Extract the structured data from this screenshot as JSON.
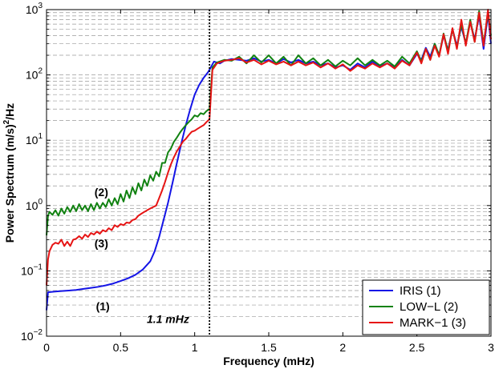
{
  "chart_data": {
    "type": "line",
    "title": "",
    "xlabel": "Frequency (mHz)",
    "ylabel": "Power Spectrum (m/s)",
    "ylabel_sup": "2",
    "ylabel_suffix": "/Hz",
    "xlim": [
      0,
      3
    ],
    "ylim": [
      0.01,
      1000
    ],
    "yscale": "log",
    "grid": "y-major-and-minor-dashed",
    "legend_position": "bottom-right",
    "x_ticks": [
      {
        "v": 0,
        "label": "0"
      },
      {
        "v": 0.5,
        "label": "0.5"
      },
      {
        "v": 1,
        "label": "1"
      },
      {
        "v": 1.5,
        "label": "1.5"
      },
      {
        "v": 2,
        "label": "2"
      },
      {
        "v": 2.5,
        "label": "2.5"
      },
      {
        "v": 3,
        "label": "3"
      }
    ],
    "y_ticks": [
      {
        "v": 0.01,
        "base": "10",
        "exp": "−2"
      },
      {
        "v": 0.1,
        "base": "10",
        "exp": "−1"
      },
      {
        "v": 1,
        "base": "10",
        "exp": "0"
      },
      {
        "v": 10,
        "base": "10",
        "exp": "1"
      },
      {
        "v": 100,
        "base": "10",
        "exp": "2"
      },
      {
        "v": 1000,
        "base": "10",
        "exp": "3"
      }
    ],
    "vline": {
      "x": 1.1
    },
    "annotations": [
      {
        "text": "(2)",
        "x": 0.37,
        "y": 1.4
      },
      {
        "text": "(3)",
        "x": 0.37,
        "y": 0.23
      },
      {
        "text": "(1)",
        "x": 0.38,
        "y": 0.025
      },
      {
        "text": "1.1 mHz",
        "x": 0.82,
        "y": 0.016,
        "italic": true
      }
    ],
    "series": [
      {
        "name": "IRIS (1)",
        "color": "#1414e6",
        "points": [
          [
            0,
            0.025
          ],
          [
            0.01,
            0.047
          ],
          [
            0.05,
            0.048
          ],
          [
            0.1,
            0.049
          ],
          [
            0.15,
            0.05
          ],
          [
            0.2,
            0.051
          ],
          [
            0.25,
            0.053
          ],
          [
            0.3,
            0.055
          ],
          [
            0.35,
            0.057
          ],
          [
            0.4,
            0.06
          ],
          [
            0.45,
            0.064
          ],
          [
            0.5,
            0.07
          ],
          [
            0.55,
            0.077
          ],
          [
            0.6,
            0.087
          ],
          [
            0.65,
            0.105
          ],
          [
            0.7,
            0.14
          ],
          [
            0.73,
            0.2
          ],
          [
            0.76,
            0.33
          ],
          [
            0.79,
            0.6
          ],
          [
            0.82,
            1.1
          ],
          [
            0.85,
            2.2
          ],
          [
            0.88,
            4.5
          ],
          [
            0.91,
            9
          ],
          [
            0.94,
            17
          ],
          [
            0.97,
            30
          ],
          [
            1.0,
            50
          ],
          [
            1.03,
            70
          ],
          [
            1.06,
            90
          ],
          [
            1.09,
            110
          ],
          [
            1.1,
            120
          ],
          [
            1.13,
            160
          ],
          [
            1.17,
            150
          ],
          [
            1.2,
            165
          ],
          [
            1.25,
            175
          ],
          [
            1.3,
            170
          ],
          [
            1.35,
            165
          ],
          [
            1.4,
            180
          ],
          [
            1.45,
            160
          ],
          [
            1.5,
            170
          ],
          [
            1.55,
            150
          ],
          [
            1.6,
            175
          ],
          [
            1.65,
            155
          ],
          [
            1.7,
            170
          ],
          [
            1.75,
            150
          ],
          [
            1.8,
            160
          ],
          [
            1.85,
            140
          ],
          [
            1.9,
            150
          ],
          [
            1.95,
            130
          ],
          [
            2.0,
            140
          ],
          [
            2.05,
            120
          ],
          [
            2.1,
            150
          ],
          [
            2.15,
            130
          ],
          [
            2.2,
            160
          ],
          [
            2.25,
            135
          ],
          [
            2.3,
            150
          ],
          [
            2.35,
            130
          ],
          [
            2.4,
            170
          ],
          [
            2.45,
            140
          ],
          [
            2.5,
            210
          ],
          [
            2.53,
            170
          ],
          [
            2.56,
            260
          ],
          [
            2.59,
            190
          ],
          [
            2.62,
            300
          ],
          [
            2.65,
            200
          ],
          [
            2.68,
            400
          ],
          [
            2.71,
            240
          ],
          [
            2.74,
            500
          ],
          [
            2.77,
            280
          ],
          [
            2.8,
            550
          ],
          [
            2.83,
            300
          ],
          [
            2.86,
            650
          ],
          [
            2.89,
            350
          ],
          [
            2.92,
            800
          ],
          [
            2.95,
            250
          ],
          [
            2.98,
            850
          ],
          [
            3.0,
            300
          ]
        ]
      },
      {
        "name": "LOW−L  (2)",
        "color": "#118211",
        "points": [
          [
            0,
            0.35
          ],
          [
            0.01,
            0.7
          ],
          [
            0.02,
            0.8
          ],
          [
            0.04,
            0.72
          ],
          [
            0.06,
            0.85
          ],
          [
            0.08,
            0.7
          ],
          [
            0.1,
            0.9
          ],
          [
            0.12,
            0.75
          ],
          [
            0.14,
            0.95
          ],
          [
            0.16,
            0.8
          ],
          [
            0.18,
            1.0
          ],
          [
            0.2,
            0.82
          ],
          [
            0.22,
            1.05
          ],
          [
            0.24,
            0.85
          ],
          [
            0.26,
            1.0
          ],
          [
            0.28,
            0.82
          ],
          [
            0.3,
            1.05
          ],
          [
            0.32,
            0.85
          ],
          [
            0.34,
            1.1
          ],
          [
            0.36,
            0.9
          ],
          [
            0.38,
            1.1
          ],
          [
            0.4,
            0.95
          ],
          [
            0.42,
            1.25
          ],
          [
            0.44,
            1.0
          ],
          [
            0.46,
            1.3
          ],
          [
            0.48,
            1.05
          ],
          [
            0.5,
            1.5
          ],
          [
            0.52,
            1.15
          ],
          [
            0.54,
            1.7
          ],
          [
            0.56,
            1.3
          ],
          [
            0.58,
            1.9
          ],
          [
            0.6,
            1.5
          ],
          [
            0.62,
            2.2
          ],
          [
            0.64,
            1.7
          ],
          [
            0.66,
            2.5
          ],
          [
            0.68,
            2.0
          ],
          [
            0.7,
            2.9
          ],
          [
            0.72,
            2.4
          ],
          [
            0.74,
            3.3
          ],
          [
            0.76,
            2.8
          ],
          [
            0.78,
            4.5
          ],
          [
            0.8,
            4.5
          ],
          [
            0.82,
            6.5
          ],
          [
            0.84,
            7.5
          ],
          [
            0.86,
            9.5
          ],
          [
            0.88,
            11
          ],
          [
            0.9,
            13
          ],
          [
            0.92,
            15
          ],
          [
            0.94,
            17
          ],
          [
            0.96,
            19
          ],
          [
            0.98,
            21
          ],
          [
            1.0,
            24
          ],
          [
            1.02,
            23
          ],
          [
            1.04,
            26
          ],
          [
            1.06,
            25
          ],
          [
            1.08,
            28
          ],
          [
            1.1,
            30
          ],
          [
            1.12,
            130
          ],
          [
            1.15,
            155
          ],
          [
            1.2,
            170
          ],
          [
            1.25,
            165
          ],
          [
            1.3,
            190
          ],
          [
            1.35,
            150
          ],
          [
            1.4,
            200
          ],
          [
            1.45,
            155
          ],
          [
            1.5,
            200
          ],
          [
            1.55,
            150
          ],
          [
            1.6,
            190
          ],
          [
            1.65,
            140
          ],
          [
            1.7,
            200
          ],
          [
            1.75,
            150
          ],
          [
            1.8,
            180
          ],
          [
            1.85,
            140
          ],
          [
            1.9,
            170
          ],
          [
            1.95,
            135
          ],
          [
            2.0,
            165
          ],
          [
            2.05,
            140
          ],
          [
            2.1,
            180
          ],
          [
            2.15,
            140
          ],
          [
            2.2,
            170
          ],
          [
            2.25,
            140
          ],
          [
            2.3,
            165
          ],
          [
            2.35,
            135
          ],
          [
            2.4,
            190
          ],
          [
            2.45,
            150
          ],
          [
            2.5,
            230
          ],
          [
            2.53,
            160
          ],
          [
            2.56,
            250
          ],
          [
            2.59,
            170
          ],
          [
            2.62,
            300
          ],
          [
            2.65,
            200
          ],
          [
            2.68,
            430
          ],
          [
            2.71,
            230
          ],
          [
            2.74,
            500
          ],
          [
            2.77,
            260
          ],
          [
            2.8,
            600
          ],
          [
            2.83,
            300
          ],
          [
            2.86,
            700
          ],
          [
            2.89,
            320
          ],
          [
            2.92,
            950
          ],
          [
            2.95,
            300
          ],
          [
            2.98,
            900
          ],
          [
            3.0,
            400
          ]
        ]
      },
      {
        "name": "MARK−1  (3)",
        "color": "#e61414",
        "points": [
          [
            0,
            0.06
          ],
          [
            0.01,
            0.15
          ],
          [
            0.02,
            0.2
          ],
          [
            0.04,
            0.25
          ],
          [
            0.06,
            0.27
          ],
          [
            0.08,
            0.26
          ],
          [
            0.1,
            0.3
          ],
          [
            0.12,
            0.24
          ],
          [
            0.14,
            0.28
          ],
          [
            0.16,
            0.24
          ],
          [
            0.18,
            0.3
          ],
          [
            0.2,
            0.31
          ],
          [
            0.22,
            0.34
          ],
          [
            0.24,
            0.31
          ],
          [
            0.26,
            0.36
          ],
          [
            0.28,
            0.33
          ],
          [
            0.3,
            0.38
          ],
          [
            0.32,
            0.36
          ],
          [
            0.34,
            0.4
          ],
          [
            0.36,
            0.37
          ],
          [
            0.38,
            0.42
          ],
          [
            0.4,
            0.4
          ],
          [
            0.42,
            0.45
          ],
          [
            0.44,
            0.42
          ],
          [
            0.46,
            0.5
          ],
          [
            0.48,
            0.47
          ],
          [
            0.5,
            0.52
          ],
          [
            0.52,
            0.5
          ],
          [
            0.54,
            0.55
          ],
          [
            0.56,
            0.54
          ],
          [
            0.58,
            0.6
          ],
          [
            0.6,
            0.62
          ],
          [
            0.62,
            0.7
          ],
          [
            0.64,
            0.75
          ],
          [
            0.66,
            0.8
          ],
          [
            0.68,
            0.85
          ],
          [
            0.7,
            0.9
          ],
          [
            0.72,
            0.95
          ],
          [
            0.74,
            1.0
          ],
          [
            0.76,
            1.3
          ],
          [
            0.78,
            1.7
          ],
          [
            0.8,
            2.3
          ],
          [
            0.82,
            3.2
          ],
          [
            0.84,
            4.3
          ],
          [
            0.86,
            5.5
          ],
          [
            0.88,
            6.8
          ],
          [
            0.9,
            8
          ],
          [
            0.92,
            9.5
          ],
          [
            0.94,
            10.5
          ],
          [
            0.96,
            12
          ],
          [
            0.98,
            13.5
          ],
          [
            1.0,
            14
          ],
          [
            1.02,
            15
          ],
          [
            1.04,
            16
          ],
          [
            1.06,
            17
          ],
          [
            1.08,
            19
          ],
          [
            1.1,
            21
          ],
          [
            1.12,
            120
          ],
          [
            1.15,
            150
          ],
          [
            1.2,
            165
          ],
          [
            1.25,
            170
          ],
          [
            1.3,
            180
          ],
          [
            1.35,
            155
          ],
          [
            1.4,
            170
          ],
          [
            1.45,
            145
          ],
          [
            1.5,
            165
          ],
          [
            1.55,
            145
          ],
          [
            1.6,
            160
          ],
          [
            1.65,
            140
          ],
          [
            1.7,
            160
          ],
          [
            1.75,
            140
          ],
          [
            1.8,
            155
          ],
          [
            1.85,
            130
          ],
          [
            1.9,
            150
          ],
          [
            1.95,
            125
          ],
          [
            2.0,
            145
          ],
          [
            2.05,
            115
          ],
          [
            2.1,
            140
          ],
          [
            2.15,
            125
          ],
          [
            2.2,
            150
          ],
          [
            2.25,
            130
          ],
          [
            2.3,
            150
          ],
          [
            2.35,
            125
          ],
          [
            2.4,
            165
          ],
          [
            2.45,
            140
          ],
          [
            2.5,
            220
          ],
          [
            2.53,
            150
          ],
          [
            2.56,
            250
          ],
          [
            2.59,
            170
          ],
          [
            2.62,
            280
          ],
          [
            2.65,
            190
          ],
          [
            2.68,
            420
          ],
          [
            2.71,
            210
          ],
          [
            2.74,
            520
          ],
          [
            2.77,
            250
          ],
          [
            2.8,
            700
          ],
          [
            2.83,
            280
          ],
          [
            2.86,
            650
          ],
          [
            2.89,
            320
          ],
          [
            2.92,
            900
          ],
          [
            2.95,
            280
          ],
          [
            2.98,
            1000
          ],
          [
            3.0,
            350
          ]
        ]
      }
    ]
  }
}
